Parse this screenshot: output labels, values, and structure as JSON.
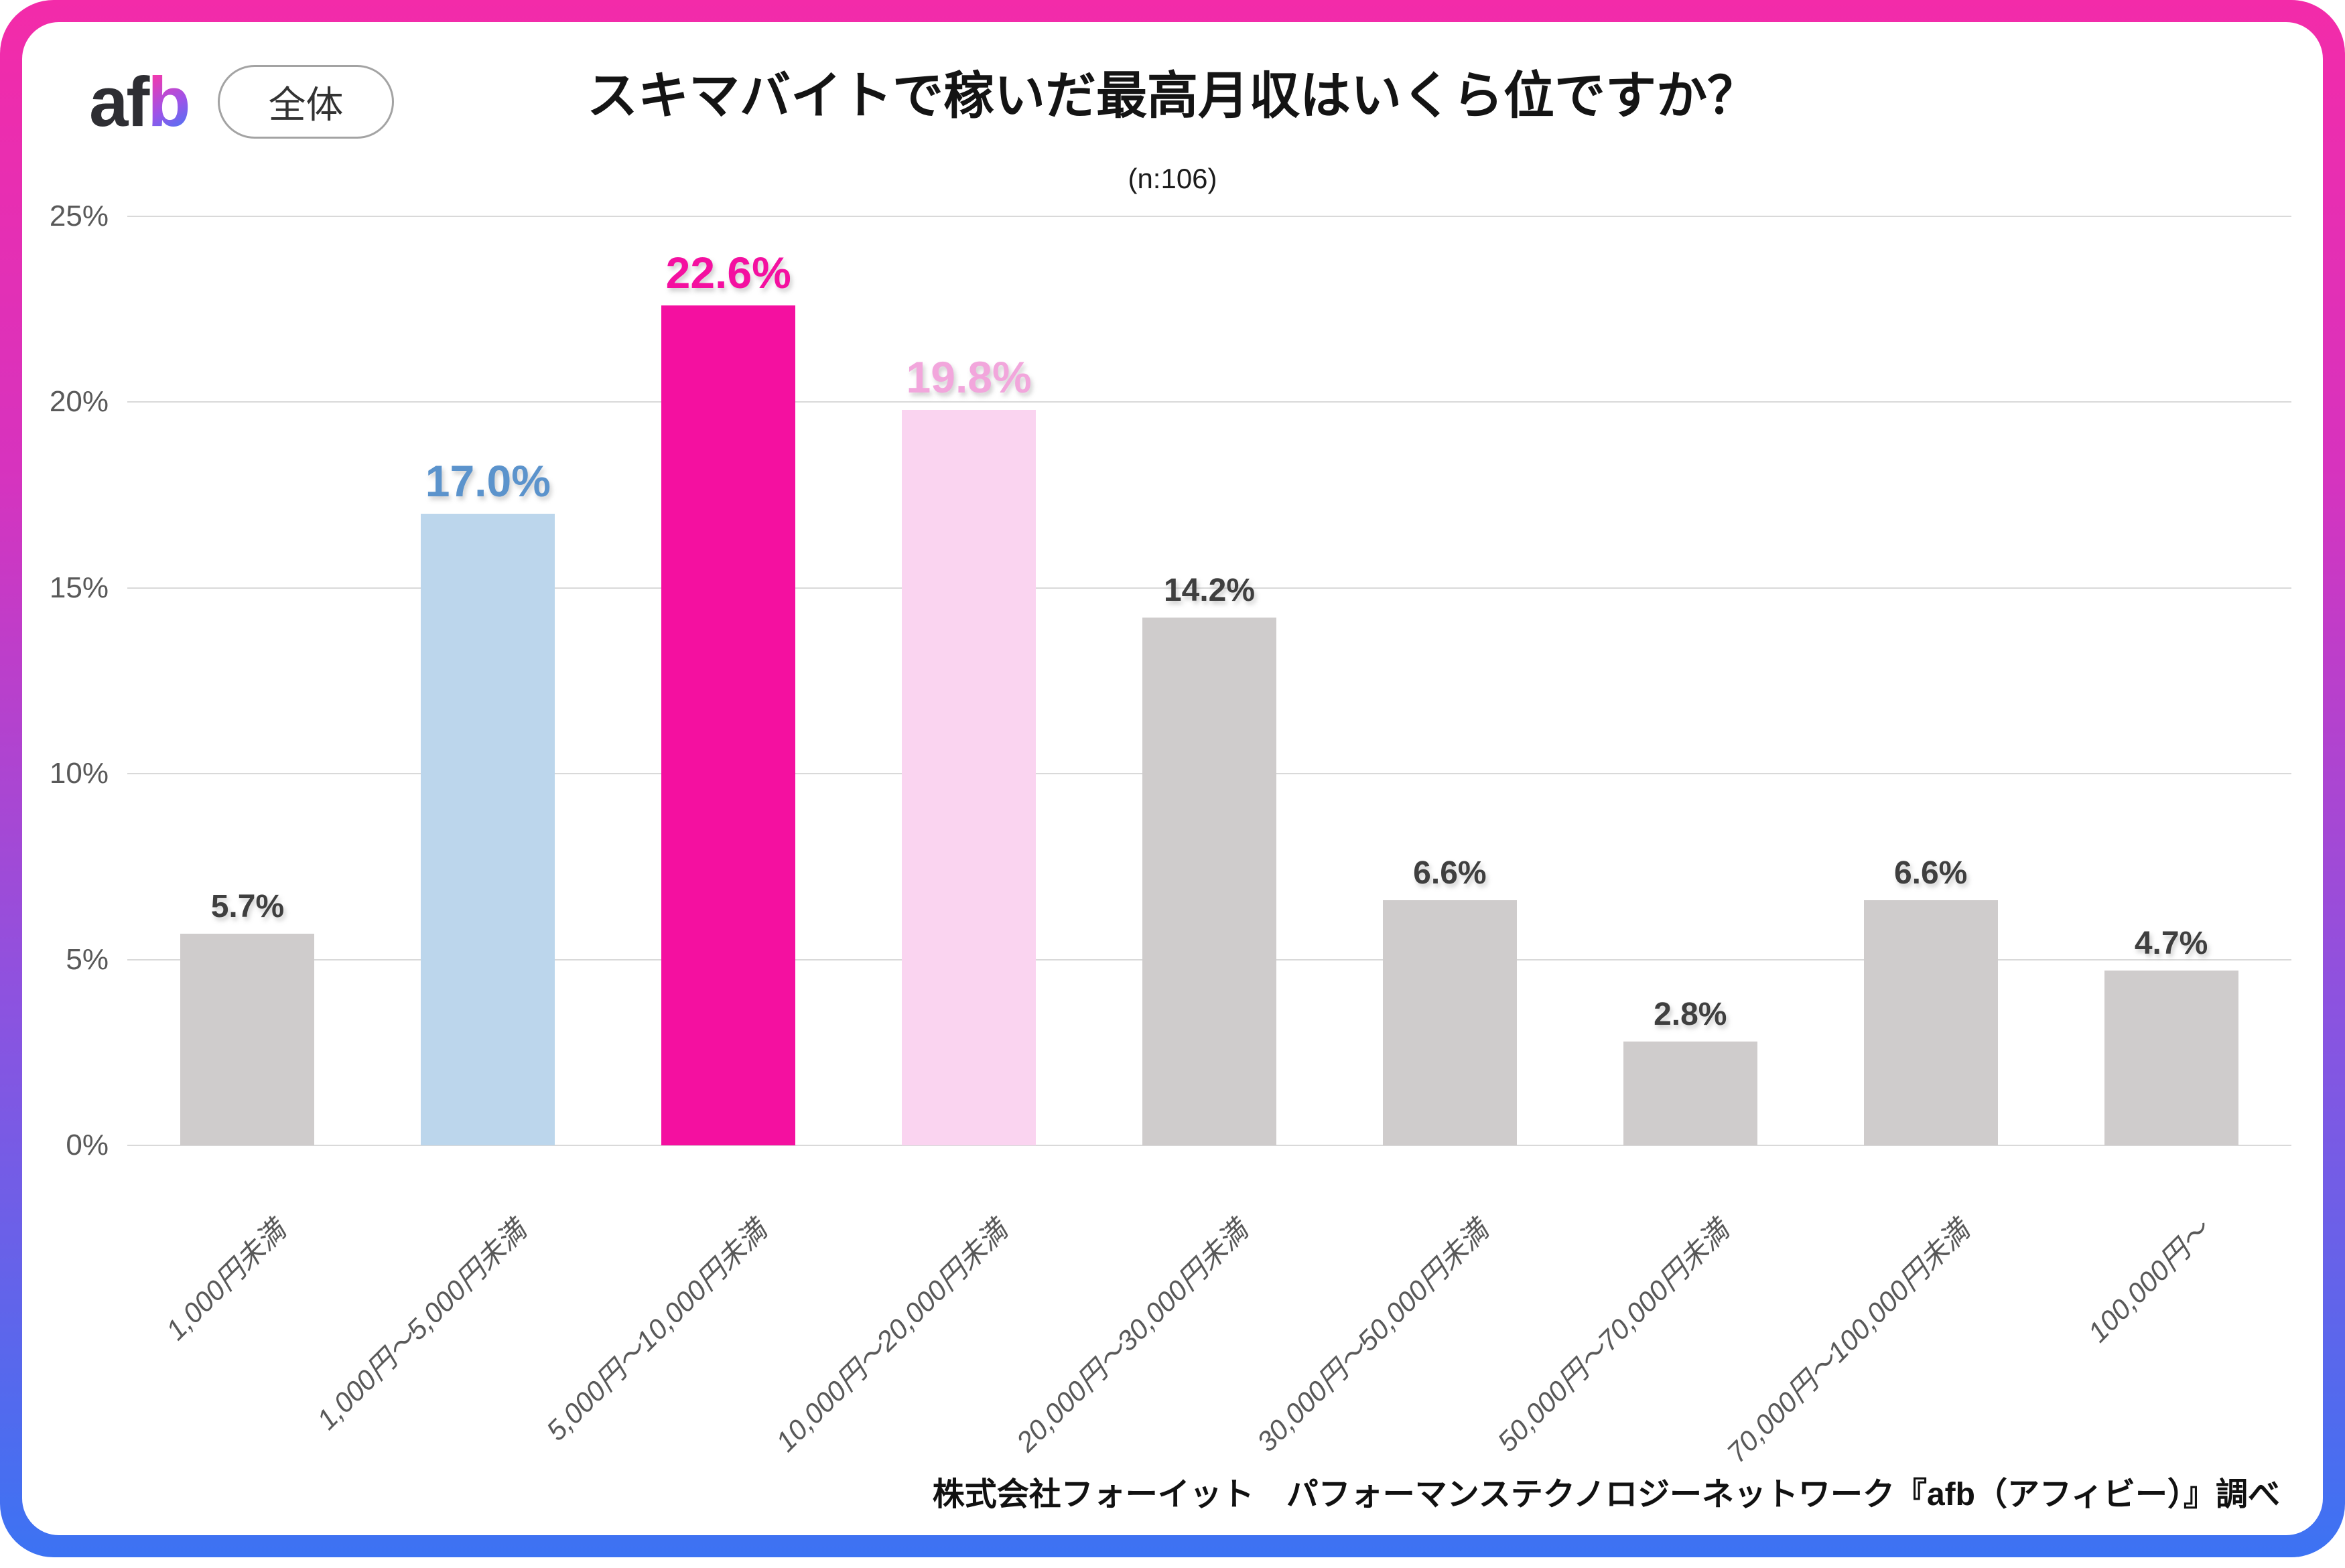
{
  "colors": {
    "frame_gradient_top": "#F32BA9",
    "frame_gradient_mid": "#8B53E0",
    "frame_gradient_bottom": "#3C73F3",
    "grid_line": "#D9D9D9",
    "axis_text": "#595959",
    "title_text": "#141414",
    "highlight_pink": "#F410A0",
    "highlight_light_pink": "#FAD4F0",
    "highlight_blue": "#BCD6EC",
    "default_bar_gray": "#CFCCCC"
  },
  "header": {
    "logo_af": "af",
    "logo_b": "b",
    "scope_label": "全体",
    "title": "スキマバイトで稼いだ最高月収はいくら位ですか？",
    "sample_size": "(n:106)"
  },
  "chart_data": {
    "type": "bar",
    "title": "スキマバイトで稼いだ最高月収はいくら位ですか？",
    "sample_label": "(n:106)",
    "categories": [
      "1,000円未満",
      "1,000円～5,000円未満",
      "5,000円～10,000円未満",
      "10,000円～20,000円未満",
      "20,000円～30,000円未満",
      "30,000円～50,000円未満",
      "50,000円～70,000円未満",
      "70,000円～100,000円未満",
      "100,000円～"
    ],
    "values": [
      5.7,
      17.0,
      22.6,
      19.8,
      14.2,
      6.6,
      2.8,
      6.6,
      4.7
    ],
    "value_labels": [
      "5.7%",
      "17.0%",
      "22.6%",
      "19.8%",
      "14.2%",
      "6.6%",
      "2.8%",
      "6.6%",
      "4.7%"
    ],
    "bar_colors": [
      "#CFCCCC",
      "#BCD6EC",
      "#F410A0",
      "#FAD4F0",
      "#CFCCCC",
      "#CFCCCC",
      "#CFCCCC",
      "#CFCCCC",
      "#CFCCCC"
    ],
    "label_colors": [
      "#3F3F3F",
      "#5B93CC",
      "#F410A0",
      "#F2A6DC",
      "#3F3F3F",
      "#3F3F3F",
      "#3F3F3F",
      "#3F3F3F",
      "#3F3F3F"
    ],
    "emphasized": [
      false,
      true,
      true,
      true,
      false,
      false,
      false,
      false,
      false
    ],
    "xlabel": "",
    "ylabel": "",
    "ylim": [
      0,
      25
    ],
    "y_ticks": [
      "25%",
      "20%",
      "15%",
      "10%",
      "5%",
      "0%"
    ],
    "grid": true,
    "legend": "none"
  },
  "footer": {
    "attribution": "株式会社フォーイット　パフォーマンステクノロジーネットワーク『afb（アフィビー）』調べ"
  }
}
